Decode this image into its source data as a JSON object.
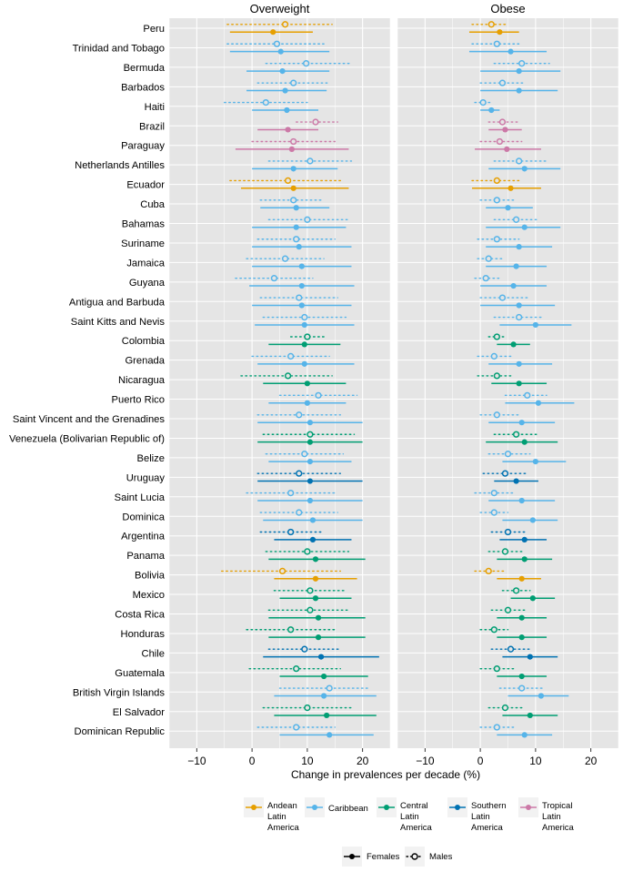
{
  "chart_data": {
    "type": "dot-range",
    "title": "",
    "xlabel": "Change in prevalences per decade (%)",
    "ylabel": "",
    "xlim": [
      -15,
      25
    ],
    "xticks": [
      -10,
      0,
      10,
      20
    ],
    "xtick_labels": [
      "−10",
      "0",
      "10",
      "20"
    ],
    "panels": [
      {
        "key": "overweight",
        "title": "Overweight"
      },
      {
        "key": "obese",
        "title": "Obese"
      }
    ],
    "regions": [
      {
        "key": "andean",
        "name": "Andean Latin America",
        "lines": [
          "Andean",
          "Latin",
          "America"
        ],
        "color": "#E69F00"
      },
      {
        "key": "caribbean",
        "name": "Caribbean",
        "lines": [
          "Caribbean"
        ],
        "color": "#56B4E9"
      },
      {
        "key": "central",
        "name": "Central Latin America",
        "lines": [
          "Central",
          "Latin",
          "America"
        ],
        "color": "#009E73"
      },
      {
        "key": "southern",
        "name": "Southern Latin America",
        "lines": [
          "Southern",
          "Latin",
          "America"
        ],
        "color": "#0072B2"
      },
      {
        "key": "tropical",
        "name": "Tropical Latin America",
        "lines": [
          "Tropical",
          "Latin",
          "America"
        ],
        "color": "#CC79A7"
      }
    ],
    "sex_legend": {
      "females": "Females",
      "males": "Males"
    },
    "countries": [
      {
        "name": "Peru",
        "region": "andean",
        "overweight": {
          "f": [
            3.8,
            -4,
            11
          ],
          "m": [
            6,
            -4.5,
            14.5
          ]
        },
        "obese": {
          "f": [
            3.5,
            -2,
            7
          ],
          "m": [
            2,
            -1.5,
            5
          ]
        }
      },
      {
        "name": "Trinidad and Tobago",
        "region": "caribbean",
        "overweight": {
          "f": [
            5.2,
            -4,
            14
          ],
          "m": [
            4.5,
            -4.5,
            13
          ]
        },
        "obese": {
          "f": [
            5.5,
            -2,
            12
          ],
          "m": [
            3,
            -1.5,
            7
          ]
        }
      },
      {
        "name": "Bermuda",
        "region": "caribbean",
        "overweight": {
          "f": [
            5.5,
            -1,
            14
          ],
          "m": [
            9.8,
            2.5,
            18
          ]
        },
        "obese": {
          "f": [
            7,
            0,
            14.5
          ],
          "m": [
            7.5,
            2.5,
            12.5
          ]
        }
      },
      {
        "name": "Barbados",
        "region": "caribbean",
        "overweight": {
          "f": [
            6,
            -1,
            13.5
          ],
          "m": [
            7.5,
            1,
            14
          ]
        },
        "obese": {
          "f": [
            7,
            0,
            14
          ],
          "m": [
            4,
            0,
            8
          ]
        }
      },
      {
        "name": "Haiti",
        "region": "caribbean",
        "overweight": {
          "f": [
            6.3,
            0,
            12
          ],
          "m": [
            2.5,
            -5,
            10
          ]
        },
        "obese": {
          "f": [
            2,
            0,
            3.5
          ],
          "m": [
            0.5,
            -1,
            2
          ]
        }
      },
      {
        "name": "Brazil",
        "region": "tropical",
        "overweight": {
          "f": [
            6.5,
            1,
            12
          ],
          "m": [
            11.5,
            8,
            15.5
          ]
        },
        "obese": {
          "f": [
            4.5,
            1.5,
            7.5
          ],
          "m": [
            4,
            1.5,
            7
          ]
        }
      },
      {
        "name": "Paraguay",
        "region": "tropical",
        "overweight": {
          "f": [
            7.2,
            -3,
            17.5
          ],
          "m": [
            7.5,
            0,
            15
          ]
        },
        "obese": {
          "f": [
            4.8,
            -1,
            11
          ],
          "m": [
            3.5,
            0,
            7.5
          ]
        }
      },
      {
        "name": "Netherlands Antilles",
        "region": "caribbean",
        "overweight": {
          "f": [
            7.5,
            0,
            15.5
          ],
          "m": [
            10.5,
            3,
            18
          ]
        },
        "obese": {
          "f": [
            8,
            1.5,
            14.5
          ],
          "m": [
            7,
            2.5,
            12
          ]
        }
      },
      {
        "name": "Ecuador",
        "region": "andean",
        "overweight": {
          "f": [
            7.5,
            -2,
            17.5
          ],
          "m": [
            6.5,
            -4,
            16.5
          ]
        },
        "obese": {
          "f": [
            5.5,
            -1.5,
            11
          ],
          "m": [
            3,
            -1.5,
            7.5
          ]
        }
      },
      {
        "name": "Cuba",
        "region": "caribbean",
        "overweight": {
          "f": [
            8,
            1.5,
            14
          ],
          "m": [
            7.5,
            1.5,
            13
          ]
        },
        "obese": {
          "f": [
            5,
            1,
            9.5
          ],
          "m": [
            3,
            0,
            6
          ]
        }
      },
      {
        "name": "Bahamas",
        "region": "caribbean",
        "overweight": {
          "f": [
            8,
            0,
            17
          ],
          "m": [
            10,
            3,
            17.5
          ]
        },
        "obese": {
          "f": [
            8,
            1,
            14.5
          ],
          "m": [
            6.5,
            2.5,
            10.5
          ]
        }
      },
      {
        "name": "Suriname",
        "region": "caribbean",
        "overweight": {
          "f": [
            8.5,
            0,
            18
          ],
          "m": [
            8,
            1,
            15
          ]
        },
        "obese": {
          "f": [
            7,
            1,
            13
          ],
          "m": [
            3,
            -0.5,
            7
          ]
        }
      },
      {
        "name": "Jamaica",
        "region": "caribbean",
        "overweight": {
          "f": [
            9,
            0,
            18
          ],
          "m": [
            6,
            -1,
            13
          ]
        },
        "obese": {
          "f": [
            6.5,
            1,
            12
          ],
          "m": [
            1.5,
            -0.5,
            4
          ]
        }
      },
      {
        "name": "Guyana",
        "region": "caribbean",
        "overweight": {
          "f": [
            9,
            -0.5,
            18.5
          ],
          "m": [
            4,
            -3,
            11
          ]
        },
        "obese": {
          "f": [
            6,
            0,
            12
          ],
          "m": [
            1,
            -1,
            3.5
          ]
        }
      },
      {
        "name": "Antigua and Barbuda",
        "region": "caribbean",
        "overweight": {
          "f": [
            9,
            0,
            18
          ],
          "m": [
            8.5,
            1.5,
            15.5
          ]
        },
        "obese": {
          "f": [
            7,
            0,
            13.5
          ],
          "m": [
            4,
            0,
            8.5
          ]
        }
      },
      {
        "name": "Saint Kitts and Nevis",
        "region": "caribbean",
        "overweight": {
          "f": [
            9.5,
            0.5,
            18.5
          ],
          "m": [
            9.5,
            2,
            17
          ]
        },
        "obese": {
          "f": [
            10,
            3.5,
            16.5
          ],
          "m": [
            7,
            2.5,
            11.5
          ]
        }
      },
      {
        "name": "Colombia",
        "region": "central",
        "overweight": {
          "f": [
            9.5,
            3,
            16
          ],
          "m": [
            10,
            7,
            13
          ]
        },
        "obese": {
          "f": [
            6,
            3,
            9
          ],
          "m": [
            3,
            1.5,
            4.5
          ]
        }
      },
      {
        "name": "Grenada",
        "region": "caribbean",
        "overweight": {
          "f": [
            9.5,
            1,
            18.5
          ],
          "m": [
            7,
            0,
            14
          ]
        },
        "obese": {
          "f": [
            7,
            1.5,
            13
          ],
          "m": [
            2.5,
            -0.5,
            6
          ]
        }
      },
      {
        "name": "Nicaragua",
        "region": "central",
        "overweight": {
          "f": [
            10,
            2,
            17
          ],
          "m": [
            6.5,
            -2,
            14.5
          ]
        },
        "obese": {
          "f": [
            7,
            2,
            12
          ],
          "m": [
            3,
            -0.5,
            6
          ]
        }
      },
      {
        "name": "Puerto Rico",
        "region": "caribbean",
        "overweight": {
          "f": [
            10,
            3,
            17
          ],
          "m": [
            12,
            5,
            19
          ]
        },
        "obese": {
          "f": [
            10.5,
            4.5,
            17
          ],
          "m": [
            8.5,
            4.5,
            12
          ]
        }
      },
      {
        "name": "Saint Vincent and the Grenadines",
        "region": "caribbean",
        "overweight": {
          "f": [
            10.5,
            1,
            20
          ],
          "m": [
            8.5,
            1,
            16
          ]
        },
        "obese": {
          "f": [
            7.5,
            1.5,
            13.5
          ],
          "m": [
            3,
            0,
            7
          ]
        }
      },
      {
        "name": "Venezuela (Bolivarian Republic of)",
        "region": "central",
        "overweight": {
          "f": [
            10.5,
            1,
            20
          ],
          "m": [
            10.5,
            2,
            18.5
          ]
        },
        "obese": {
          "f": [
            8,
            1,
            14
          ],
          "m": [
            6.5,
            2.5,
            10.5
          ]
        }
      },
      {
        "name": "Belize",
        "region": "caribbean",
        "overweight": {
          "f": [
            10.5,
            3,
            18
          ],
          "m": [
            9.5,
            2.5,
            16.5
          ]
        },
        "obese": {
          "f": [
            10,
            4,
            15.5
          ],
          "m": [
            5,
            1.5,
            9
          ]
        }
      },
      {
        "name": "Uruguay",
        "region": "southern",
        "overweight": {
          "f": [
            10.5,
            1,
            20
          ],
          "m": [
            8.5,
            1,
            16
          ]
        },
        "obese": {
          "f": [
            6.5,
            2.5,
            10.5
          ],
          "m": [
            4.5,
            0.5,
            8.5
          ]
        }
      },
      {
        "name": "Saint Lucia",
        "region": "caribbean",
        "overweight": {
          "f": [
            10.5,
            1,
            20
          ],
          "m": [
            7,
            -1,
            15
          ]
        },
        "obese": {
          "f": [
            7.5,
            1.5,
            13.5
          ],
          "m": [
            2.5,
            -1,
            6
          ]
        }
      },
      {
        "name": "Dominica",
        "region": "caribbean",
        "overweight": {
          "f": [
            11,
            2,
            20
          ],
          "m": [
            8.5,
            1.5,
            15.5
          ]
        },
        "obese": {
          "f": [
            9.5,
            4,
            14
          ],
          "m": [
            2.5,
            0,
            5
          ]
        }
      },
      {
        "name": "Argentina",
        "region": "southern",
        "overweight": {
          "f": [
            11,
            4,
            18
          ],
          "m": [
            7,
            1.5,
            12.5
          ]
        },
        "obese": {
          "f": [
            8,
            3.5,
            12
          ],
          "m": [
            5,
            2,
            8
          ]
        }
      },
      {
        "name": "Panama",
        "region": "central",
        "overweight": {
          "f": [
            11.5,
            3,
            20.5
          ],
          "m": [
            10,
            2.5,
            17.5
          ]
        },
        "obese": {
          "f": [
            8,
            3,
            13
          ],
          "m": [
            4.5,
            1.5,
            7.5
          ]
        }
      },
      {
        "name": "Bolivia",
        "region": "andean",
        "overweight": {
          "f": [
            11.5,
            4,
            19
          ],
          "m": [
            5.5,
            -5.5,
            16
          ]
        },
        "obese": {
          "f": [
            7.5,
            3,
            11
          ],
          "m": [
            1.5,
            -1,
            4.5
          ]
        }
      },
      {
        "name": "Mexico",
        "region": "central",
        "overweight": {
          "f": [
            11.5,
            5,
            18
          ],
          "m": [
            10.5,
            4,
            17
          ]
        },
        "obese": {
          "f": [
            9.5,
            5.5,
            13.5
          ],
          "m": [
            6.5,
            4,
            9
          ]
        }
      },
      {
        "name": "Costa Rica",
        "region": "central",
        "overweight": {
          "f": [
            12,
            3,
            20.5
          ],
          "m": [
            10.5,
            3,
            17.5
          ]
        },
        "obese": {
          "f": [
            7.5,
            3,
            12
          ],
          "m": [
            5,
            2,
            8
          ]
        }
      },
      {
        "name": "Honduras",
        "region": "central",
        "overweight": {
          "f": [
            12,
            3,
            20.5
          ],
          "m": [
            7,
            -1,
            15
          ]
        },
        "obese": {
          "f": [
            7.5,
            3,
            12
          ],
          "m": [
            2.5,
            0,
            5
          ]
        }
      },
      {
        "name": "Chile",
        "region": "southern",
        "overweight": {
          "f": [
            12.5,
            2,
            23
          ],
          "m": [
            9.5,
            3,
            16
          ]
        },
        "obese": {
          "f": [
            9,
            4,
            14
          ],
          "m": [
            5.5,
            2,
            9
          ]
        }
      },
      {
        "name": "Guatemala",
        "region": "central",
        "overweight": {
          "f": [
            13,
            5,
            21
          ],
          "m": [
            8,
            -0.5,
            16
          ]
        },
        "obese": {
          "f": [
            7.5,
            3,
            12
          ],
          "m": [
            3,
            0,
            6
          ]
        }
      },
      {
        "name": "British Virgin Islands",
        "region": "caribbean",
        "overweight": {
          "f": [
            13,
            4,
            22.5
          ],
          "m": [
            14,
            5,
            21
          ]
        },
        "obese": {
          "f": [
            11,
            5,
            16
          ],
          "m": [
            7.5,
            3.5,
            11.5
          ]
        }
      },
      {
        "name": "El Salvador",
        "region": "central",
        "overweight": {
          "f": [
            13.5,
            4,
            22.5
          ],
          "m": [
            10,
            2,
            18
          ]
        },
        "obese": {
          "f": [
            9,
            4,
            14
          ],
          "m": [
            4.5,
            1.5,
            8
          ]
        }
      },
      {
        "name": "Dominican Republic",
        "region": "caribbean",
        "overweight": {
          "f": [
            14,
            5,
            22
          ],
          "m": [
            8,
            1,
            15
          ]
        },
        "obese": {
          "f": [
            8,
            3,
            13
          ],
          "m": [
            3,
            0,
            6
          ]
        }
      }
    ]
  }
}
